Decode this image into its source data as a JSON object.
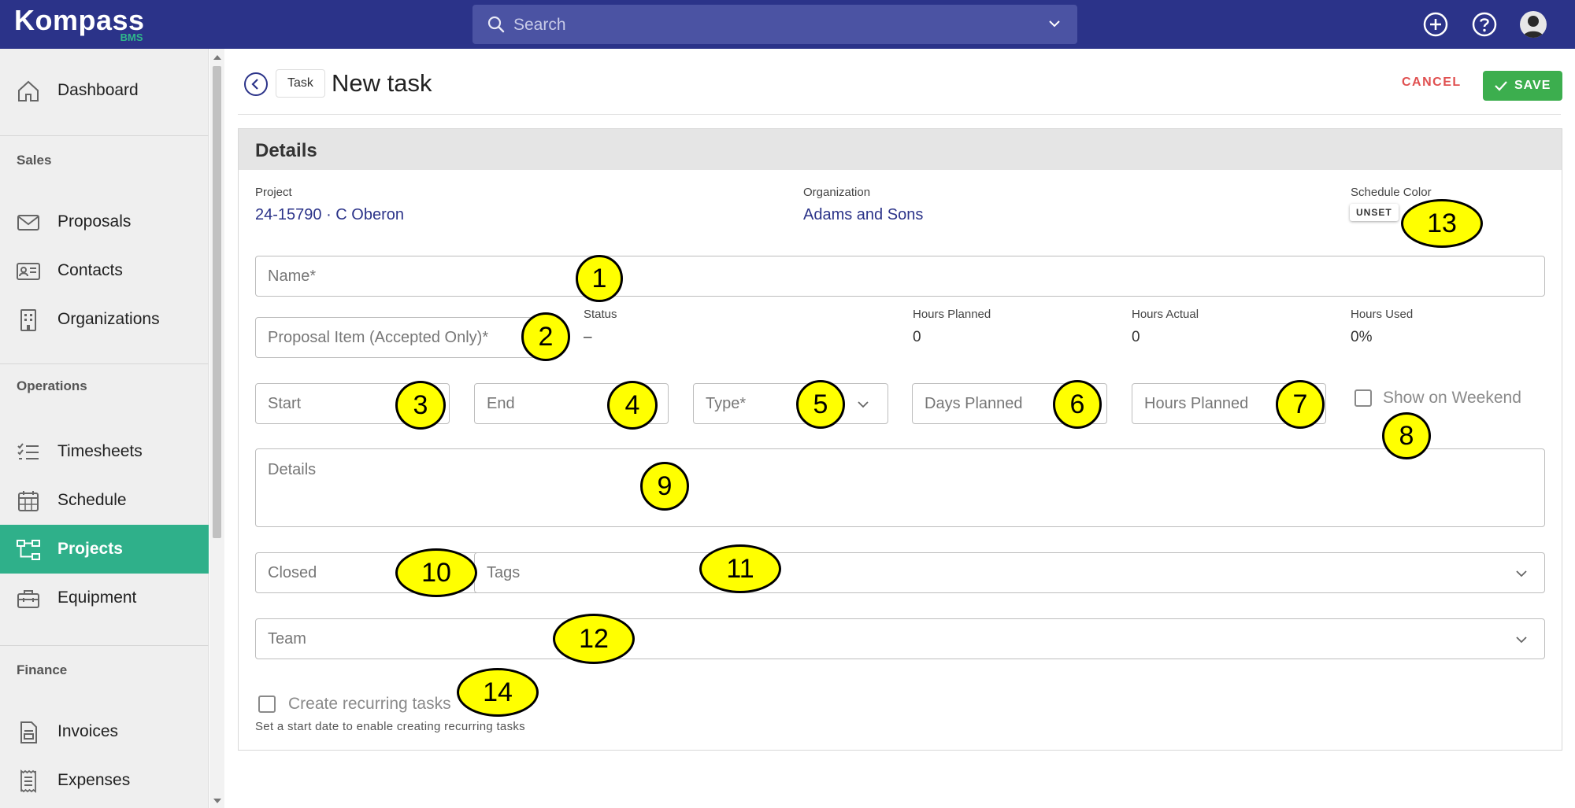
{
  "app": {
    "logo_main": "Kompass",
    "logo_sub": "BMS",
    "search_placeholder": "Search"
  },
  "icons": {
    "search": "search-icon",
    "add": "plus-circle-icon",
    "help": "help-circle-icon",
    "user": "avatar-icon"
  },
  "sidebar": {
    "dashboard": "Dashboard",
    "sales_section": "Sales",
    "proposals": "Proposals",
    "contacts": "Contacts",
    "organizations": "Organizations",
    "operations_section": "Operations",
    "timesheets": "Timesheets",
    "schedule": "Schedule",
    "projects": "Projects",
    "equipment": "Equipment",
    "finance_section": "Finance",
    "invoices": "Invoices",
    "expenses": "Expenses"
  },
  "header": {
    "breadcrumb_chip": "Task",
    "title": "New task",
    "cancel_label": "CANCEL",
    "save_label": "SAVE"
  },
  "details": {
    "section_title": "Details",
    "project_label": "Project",
    "project_value": "24-15790 · C Oberon",
    "organization_label": "Organization",
    "organization_value": "Adams and Sons",
    "schedule_color_label": "Schedule Color",
    "schedule_color_value": "UNSET",
    "name_placeholder": "Name*",
    "proposal_item_placeholder": "Proposal Item (Accepted Only)*",
    "status_label": "Status",
    "status_value": "–",
    "hours_planned_label": "Hours Planned",
    "hours_planned_value": "0",
    "hours_actual_label": "Hours Actual",
    "hours_actual_value": "0",
    "hours_used_label": "Hours Used",
    "hours_used_value": "0%",
    "start_placeholder": "Start",
    "end_placeholder": "End",
    "type_placeholder": "Type*",
    "days_planned_placeholder": "Days Planned",
    "hours_planned_placeholder": "Hours Planned",
    "show_on_weekend_label": "Show on Weekend",
    "show_on_weekend_checked": false,
    "details_placeholder": "Details",
    "closed_placeholder": "Closed",
    "tags_placeholder": "Tags",
    "team_placeholder": "Team",
    "recurring_label": "Create recurring tasks",
    "recurring_checked": false,
    "recurring_hint": "Set a start date to enable creating recurring tasks"
  },
  "callouts": [
    "1",
    "2",
    "3",
    "4",
    "5",
    "6",
    "7",
    "8",
    "9",
    "10",
    "11",
    "12",
    "13",
    "14"
  ],
  "colors": {
    "topbar": "#2b3389",
    "accent_green": "#2fb08a",
    "save_green": "#3cae4e",
    "cancel_red": "#e05050",
    "link_blue": "#2b3389",
    "callout_yellow": "#ffff00"
  }
}
